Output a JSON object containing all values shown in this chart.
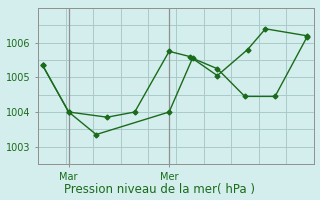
{
  "background_color": "#d4eeee",
  "grid_color": "#aacaca",
  "line_color": "#1a6b1a",
  "marker_color": "#1a6b1a",
  "xlabel": "Pression niveau de la mer( hPa )",
  "xlabel_fontsize": 8.5,
  "yticks": [
    1003,
    1004,
    1005,
    1006
  ],
  "ylim": [
    1002.5,
    1006.9
  ],
  "xlim": [
    0,
    20
  ],
  "xtick_positions": [
    2.2,
    9.5
  ],
  "xtick_labels": [
    "Mar",
    "Mer"
  ],
  "vline_positions": [
    2.2,
    9.5
  ],
  "line1_x": [
    0.3,
    2.2,
    4.2,
    9.5,
    11.2,
    13.0,
    15.0,
    17.2,
    19.5
  ],
  "line1_y": [
    1005.35,
    1004.0,
    1003.35,
    1004.0,
    1005.55,
    1005.25,
    1004.45,
    1004.45,
    1006.15
  ],
  "line2_x": [
    0.3,
    2.2,
    5.0,
    7.0,
    9.5,
    11.0,
    13.0,
    15.2,
    16.5,
    19.5
  ],
  "line2_y": [
    1005.35,
    1004.0,
    1003.85,
    1004.0,
    1005.75,
    1005.6,
    1005.05,
    1005.8,
    1006.4,
    1006.2
  ]
}
